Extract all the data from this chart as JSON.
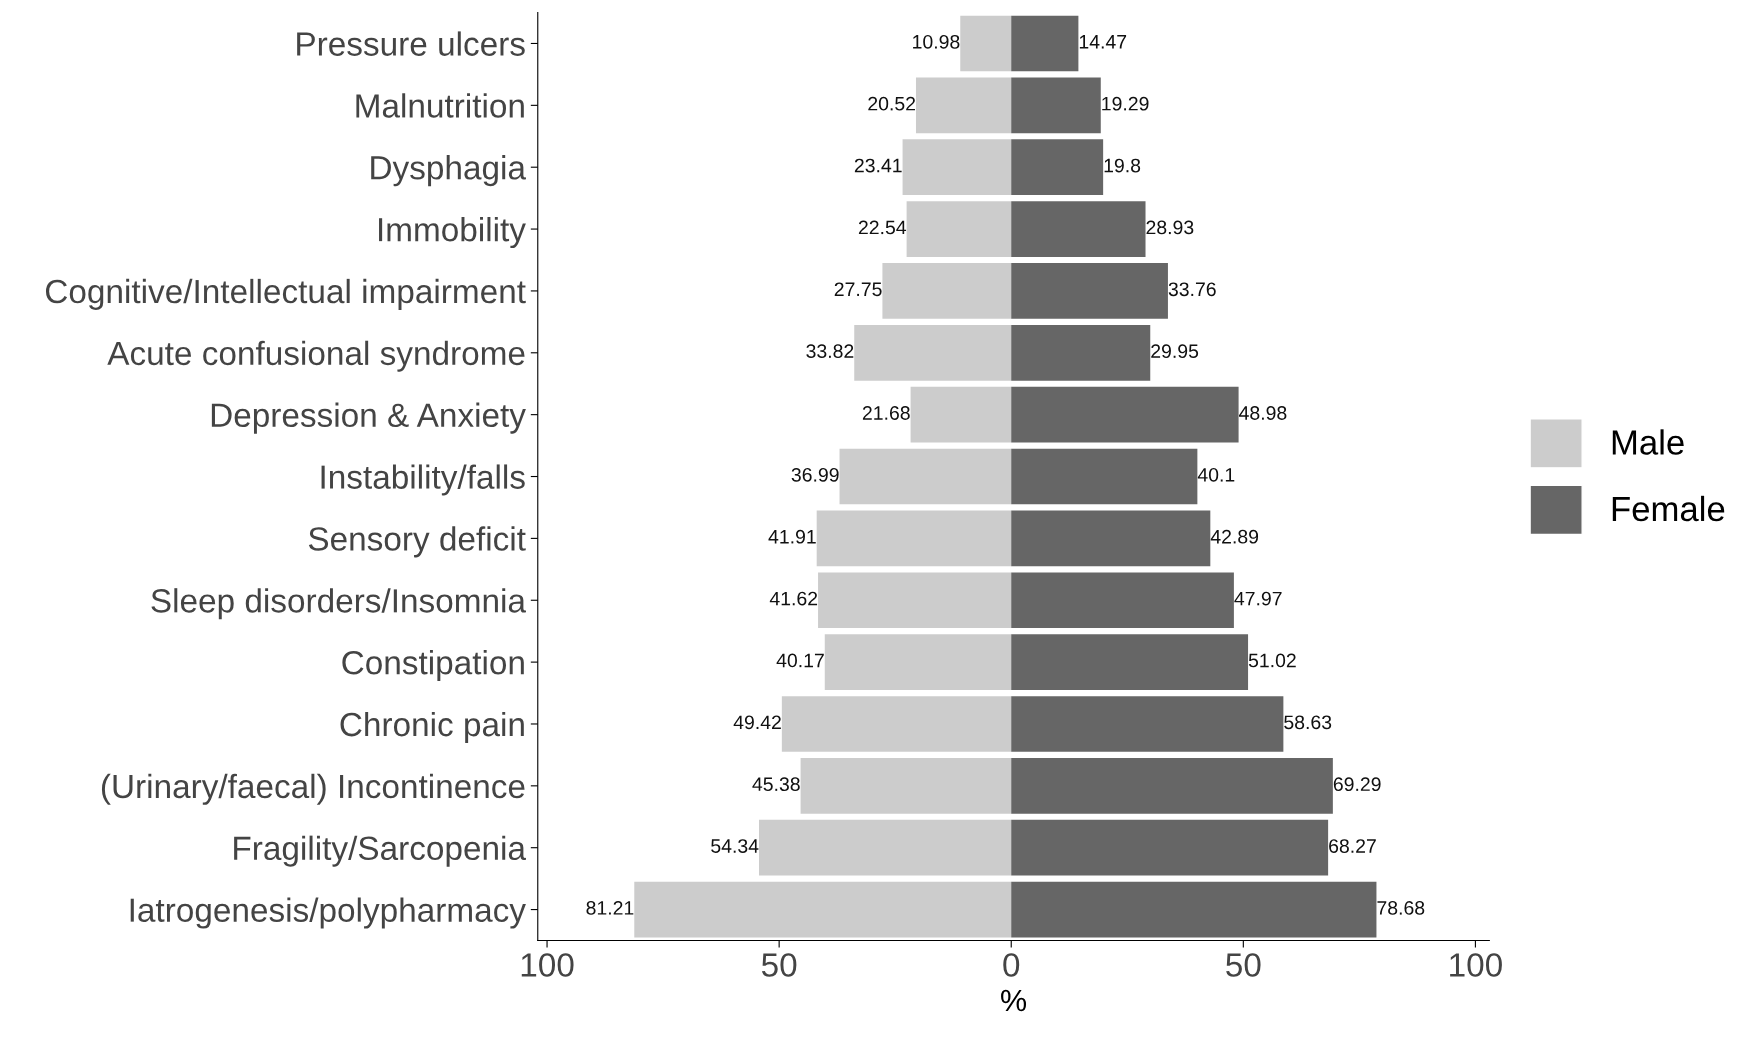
{
  "chart_data": {
    "type": "bar",
    "orientation": "horizontal",
    "xlabel": "%",
    "categories": [
      "Pressure ulcers",
      "Malnutrition",
      "Dysphagia",
      "Immobility",
      "Cognitive/Intellectual impairment",
      "Acute confusional syndrome",
      "Depression & Anxiety",
      "Instability/falls",
      "Sensory deficit",
      "Sleep disorders/Insomnia",
      "Constipation",
      "Chronic pain",
      "(Urinary/faecal) Incontinence",
      "Fragility/Sarcopenia",
      "Iatrogenesis/polypharmacy"
    ],
    "series": [
      {
        "name": "Male",
        "color": "#cccccc",
        "values": [
          10.98,
          20.52,
          23.41,
          22.54,
          27.75,
          33.82,
          21.68,
          36.99,
          41.91,
          41.62,
          40.17,
          49.42,
          45.38,
          54.34,
          81.21
        ],
        "base": [
          -10.98,
          -20.52,
          -23.41,
          -22.54,
          -27.75,
          -33.82,
          -21.68,
          -36.99,
          -41.91,
          -41.62,
          -40.17,
          -49.42,
          -45.38,
          -54.34,
          -81.21
        ]
      },
      {
        "name": "Female",
        "color": "#666666",
        "values": [
          14.47,
          19.29,
          19.8,
          28.93,
          33.76,
          29.95,
          48.98,
          40.1,
          42.89,
          47.97,
          51.02,
          58.63,
          69.29,
          68.27,
          78.68
        ]
      }
    ],
    "data_labels": true,
    "xlim": [
      -102,
      103
    ],
    "xticks": [
      {
        "value": -100,
        "label": "100"
      },
      {
        "value": -50,
        "label": "50"
      },
      0,
      50,
      100
    ],
    "grid": false,
    "legend": "right"
  }
}
